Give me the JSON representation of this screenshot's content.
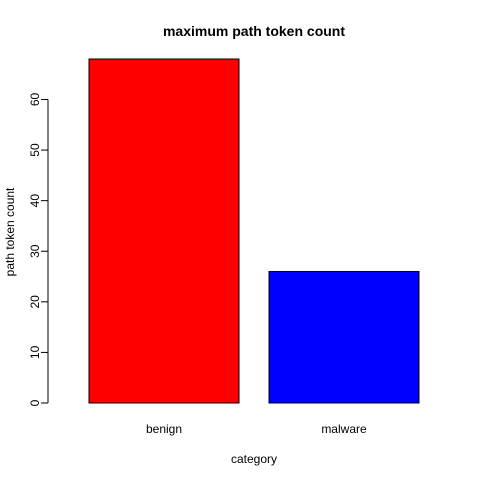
{
  "chart_data": {
    "type": "bar",
    "title": "maximum path token count",
    "xlabel": "category",
    "ylabel": "path token count",
    "categories": [
      "benign",
      "malware"
    ],
    "values": [
      68,
      26
    ],
    "colors": [
      "#ff0000",
      "#0000ff"
    ],
    "yticks": [
      "0",
      "10",
      "20",
      "30",
      "40",
      "50",
      "60"
    ],
    "ylim": [
      0,
      68
    ],
    "grid": false,
    "legend": "none"
  }
}
